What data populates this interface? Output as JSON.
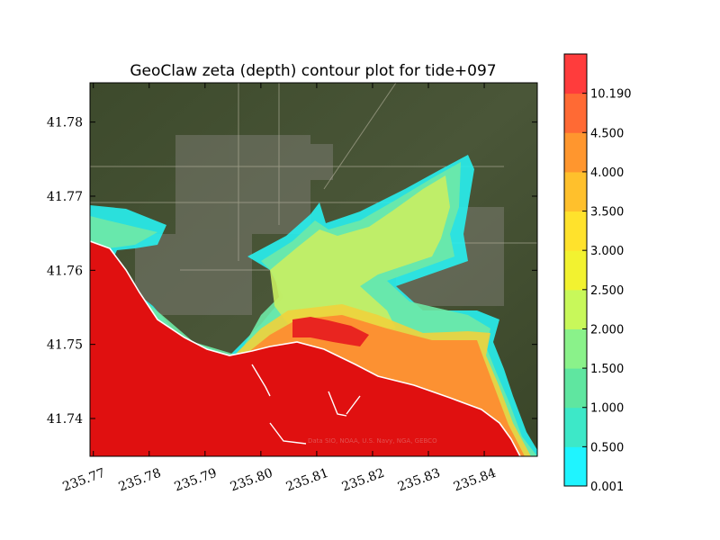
{
  "chart_data": {
    "type": "heatmap",
    "title": "GeoClaw zeta (depth) contour plot for tide+097",
    "xlabel": "",
    "ylabel": "",
    "xlim": [
      235.7694,
      235.8495
    ],
    "ylim": [
      41.7349,
      41.7853
    ],
    "x_ticks": [
      "235.77",
      "235.78",
      "235.79",
      "235.80",
      "235.81",
      "235.82",
      "235.83",
      "235.84"
    ],
    "x_tick_values": [
      235.77,
      235.78,
      235.79,
      235.8,
      235.81,
      235.82,
      235.83,
      235.84
    ],
    "y_ticks": [
      "41.74",
      "41.75",
      "41.76",
      "41.77",
      "41.78"
    ],
    "y_tick_values": [
      41.74,
      41.75,
      41.76,
      41.77,
      41.78
    ],
    "colorbar": {
      "levels": [
        0.001,
        0.5,
        1.0,
        1.5,
        2.0,
        2.5,
        3.0,
        3.5,
        4.0,
        4.5,
        10.19
      ],
      "labels": [
        "0.001",
        "0.500",
        "1.000",
        "1.500",
        "2.000",
        "2.500",
        "3.000",
        "3.500",
        "4.000",
        "4.500",
        "10.190"
      ],
      "colors": [
        "#1ff4ff",
        "#3de8c8",
        "#5fe6a0",
        "#8af28a",
        "#c8f85a",
        "#f2f230",
        "#ffe22c",
        "#ffc02c",
        "#ff962e",
        "#ff6a34",
        "#ff3c3c"
      ]
    },
    "background": "satellite imagery",
    "attribution": "Data SIO, NOAA, U.S. Navy, NGA, GEBCO",
    "grid": false,
    "legend": "colorbar at right"
  }
}
